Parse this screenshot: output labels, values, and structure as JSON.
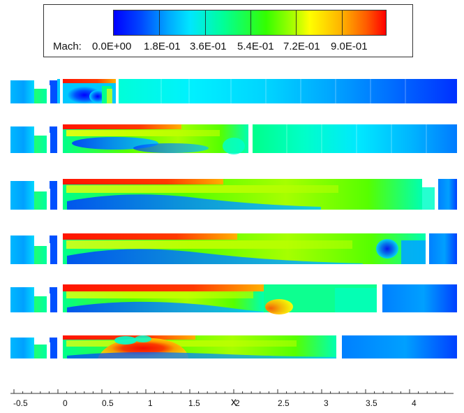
{
  "legend": {
    "title": "Mach:",
    "ticks": [
      "0.0E+00",
      "1.8E-01",
      "3.6E-01",
      "5.4E-01",
      "7.2E-01",
      "9.0E-01"
    ]
  },
  "axis": {
    "label": "x",
    "ticks": [
      "-0.5",
      "0",
      "0.5",
      "1",
      "1.5",
      "2",
      "2.5",
      "3",
      "3.5",
      "4"
    ]
  },
  "scale": {
    "min": 0.0,
    "max": 1.0
  },
  "colors": {
    "deep_blue": "#0000ff",
    "blue": "#0048ff",
    "cyan": "#00e6ff",
    "green": "#34ff00",
    "yellow": "#ffff00",
    "orange": "#ff8a00",
    "red": "#ff0000"
  }
}
